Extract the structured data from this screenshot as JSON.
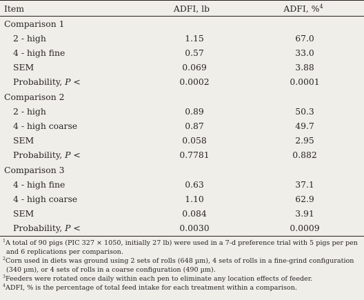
{
  "header": {
    "item": "Item",
    "adfi_lb": "ADFI, lb",
    "adfi_pct": "ADFI, %",
    "adfi_pct_sup": "4"
  },
  "groups": [
    {
      "title": "Comparison 1",
      "rows": [
        {
          "label": "2 - high",
          "lb": "1.15",
          "pct": "67.0"
        },
        {
          "label": "4 - high fine",
          "lb": "0.57",
          "pct": "33.0"
        },
        {
          "label": "SEM",
          "lb": "0.069",
          "pct": "3.88"
        },
        {
          "label": "Probability, ",
          "label_italic": "P",
          "label_tail": " <",
          "lb": "0.0002",
          "pct": "0.0001"
        }
      ]
    },
    {
      "title": "Comparison 2",
      "rows": [
        {
          "label": "2 - high",
          "lb": "0.89",
          "pct": "50.3"
        },
        {
          "label": "4 - high coarse",
          "lb": "0.87",
          "pct": "49.7"
        },
        {
          "label": "SEM",
          "lb": "0.058",
          "pct": "2.95"
        },
        {
          "label": "Probability, ",
          "label_italic": "P",
          "label_tail": " <",
          "lb": "0.7781",
          "pct": "0.882"
        }
      ]
    },
    {
      "title": "Comparison 3",
      "rows": [
        {
          "label": "4 - high fine",
          "lb": "0.63",
          "pct": "37.1"
        },
        {
          "label": "4 - high coarse",
          "lb": "1.10",
          "pct": "62.9"
        },
        {
          "label": "SEM",
          "lb": "0.084",
          "pct": "3.91"
        },
        {
          "label": "Probability, ",
          "label_italic": "P",
          "label_tail": " <",
          "lb": "0.0030",
          "pct": "0.0009"
        }
      ]
    }
  ],
  "footnotes": [
    {
      "sup": "1",
      "text": "A total of 90 pigs (PIC 327 × 1050, initially 27 lb) were used in a 7-d preference trial with 5 pigs per pen and 6 replications per comparison."
    },
    {
      "sup": "2",
      "text": "Corn used in diets was ground using 2 sets of rolls (648 µm), 4 sets of rolls in a fine-grind configuration (340 µm), or 4 sets of rolls in a coarse configuration (490 µm)."
    },
    {
      "sup": "3",
      "text": "Feeders were rotated once daily within each pen to eliminate any location effects of feeder."
    },
    {
      "sup": "4",
      "text": "ADFI, % is the percentage of total feed intake for each treatment within a comparison."
    }
  ]
}
